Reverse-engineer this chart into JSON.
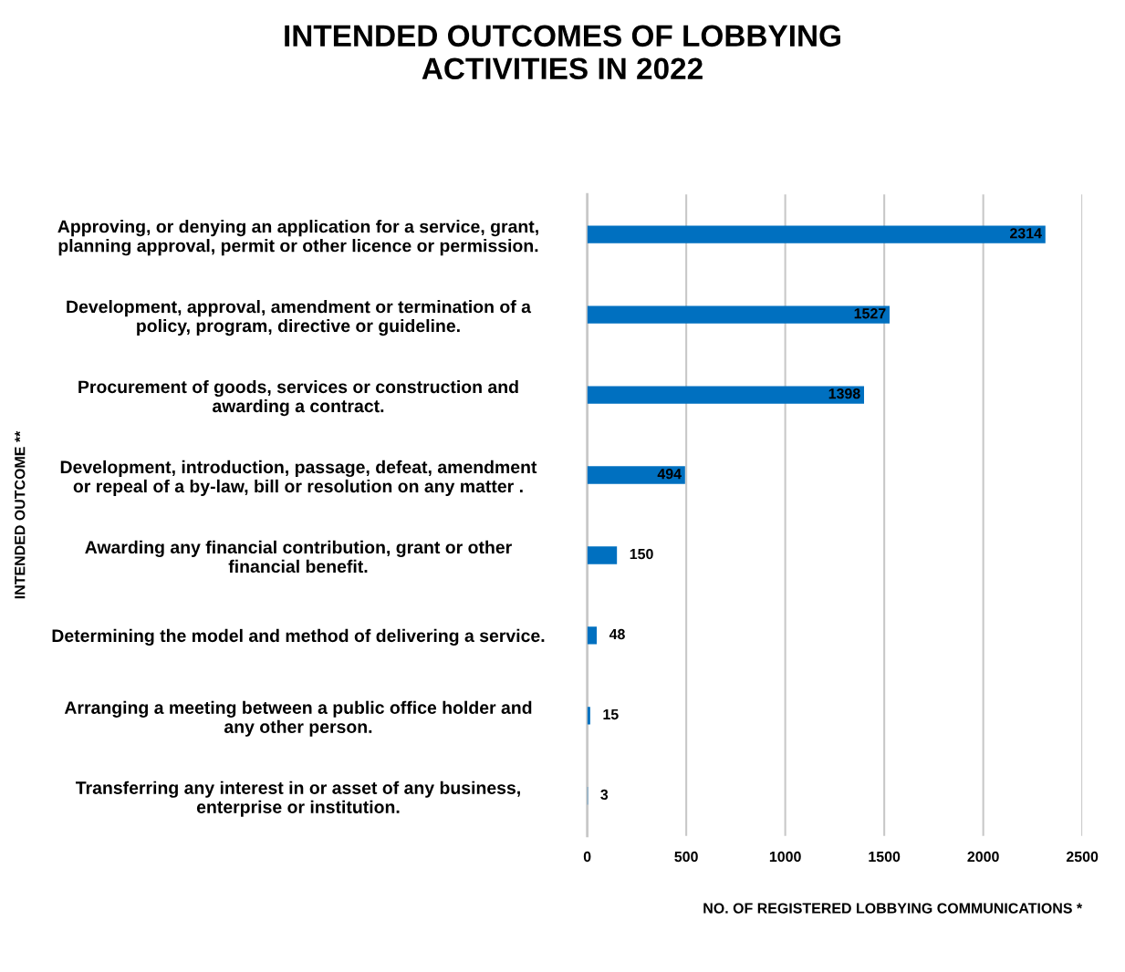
{
  "chart_data": {
    "type": "bar",
    "orientation": "horizontal",
    "title": "INTENDED OUTCOMES OF LOBBYING\nACTIVITIES IN 2022",
    "xlabel": "NO. OF REGISTERED LOBBYING COMMUNICATIONS *",
    "ylabel": "INTENDED OUTCOME **",
    "categories": [
      "Approving, or denying an application for a service, grant,\nplanning approval, permit or other licence or permission.",
      "Development, approval, amendment or termination of a\npolicy, program, directive or guideline.",
      "Procurement of goods, services or construction and\nawarding a contract.",
      "Development, introduction, passage, defeat, amendment\nor repeal of a by-law, bill or resolution on any matter .",
      "Awarding any financial contribution, grant or other\nfinancial benefit.",
      "Determining the model and method of delivering a service.",
      "Arranging a meeting between a public office holder and\nany other person.",
      "Transferring any interest in or asset of any business,\nenterprise or institution."
    ],
    "values": [
      2314,
      1527,
      1398,
      494,
      150,
      48,
      15,
      3
    ],
    "color": "#0070c0",
    "xlim": [
      0,
      2500
    ],
    "xticks": [
      0,
      500,
      1000,
      1500,
      2000,
      2500
    ],
    "grid": "x",
    "data_labels": true
  }
}
